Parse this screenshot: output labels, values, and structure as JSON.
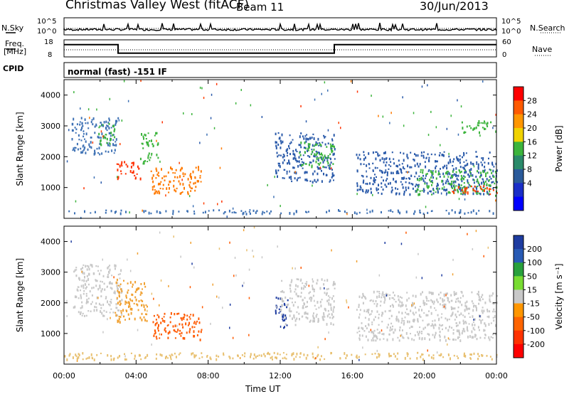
{
  "header": {
    "station": "Christmas Valley West (fitACF)",
    "beam": "Beam 11",
    "date": "30/Jun/2013"
  },
  "noise_panel": {
    "left_label": "N.Sky",
    "right_label": "N.Search",
    "left_ticks": [
      "10^5",
      "10^0"
    ],
    "right_ticks": [
      "10^5",
      "10^0"
    ]
  },
  "freq_panel": {
    "left_label_line1": "Freq.",
    "left_label_line2": "[MHz]",
    "right_label": "Nave",
    "left_ticks": [
      "18",
      "8"
    ],
    "right_ticks": [
      "60",
      "0"
    ]
  },
  "cpid": {
    "label": "CPID",
    "mode": "normal (fast) -151 IF"
  },
  "time_axis": {
    "title": "Time UT",
    "ticks": [
      "00:00",
      "04:00",
      "08:00",
      "12:00",
      "16:00",
      "20:00",
      "00:00"
    ]
  },
  "chart_data": [
    {
      "type": "heatmap",
      "name": "power",
      "ylabel": "Slant Range [km]",
      "yticks": [
        "4000",
        "3000",
        "2000",
        "1000"
      ],
      "colorbar_label": "Power [dB]",
      "colorbar_ticks": [
        "28",
        "24",
        "20",
        "16",
        "12",
        "8",
        "4"
      ],
      "colorbar_colors": [
        "#ff0000",
        "#ff5a00",
        "#ff9600",
        "#f0d200",
        "#3cb43c",
        "#2a8a6a",
        "#2a5a9a",
        "#1a2ec8",
        "#0000ff"
      ],
      "regions": [
        {
          "t": [
            0.4,
            3.0
          ],
          "r": [
            2100,
            3300
          ],
          "level": "mid",
          "color": "#3c70b4"
        },
        {
          "t": [
            1.8,
            2.8
          ],
          "r": [
            2400,
            3100
          ],
          "level": "high",
          "color": "#3cb43c"
        },
        {
          "t": [
            2.9,
            4.3
          ],
          "r": [
            1300,
            1900
          ],
          "level": "max",
          "color": "#ff3000"
        },
        {
          "t": [
            4.2,
            5.2
          ],
          "r": [
            1800,
            2800
          ],
          "level": "high",
          "color": "#3cb43c"
        },
        {
          "t": [
            4.8,
            7.6
          ],
          "r": [
            800,
            1700
          ],
          "level": "max",
          "color": "#ff7a00"
        },
        {
          "t": [
            11.7,
            15.0
          ],
          "r": [
            1200,
            2800
          ],
          "level": "mid",
          "color": "#2a5aaa"
        },
        {
          "t": [
            13.0,
            15.0
          ],
          "r": [
            1700,
            2500
          ],
          "level": "high",
          "color": "#3cb43c"
        },
        {
          "t": [
            16.2,
            24.0
          ],
          "r": [
            800,
            2200
          ],
          "level": "mid",
          "color": "#2a5aaa"
        },
        {
          "t": [
            19.5,
            24.0
          ],
          "r": [
            800,
            1600
          ],
          "level": "high",
          "color": "#3cb43c"
        },
        {
          "t": [
            21.5,
            24.0
          ],
          "r": [
            800,
            1100
          ],
          "level": "max",
          "color": "#ff4000"
        },
        {
          "t": [
            22.0,
            24.0
          ],
          "r": [
            2800,
            3200
          ],
          "level": "mid",
          "color": "#3cb43c"
        },
        {
          "t": [
            0.0,
            24.0
          ],
          "r": [
            180,
            300
          ],
          "level": "low",
          "color": "#3c70b4"
        }
      ]
    },
    {
      "type": "heatmap",
      "name": "velocity",
      "ylabel": "Slant Range [km]",
      "yticks": [
        "4000",
        "3000",
        "2000",
        "1000"
      ],
      "colorbar_label": "Velocity [m s⁻¹]",
      "colorbar_ticks": [
        "200",
        "100",
        "50",
        "15",
        "-15",
        "-50",
        "-100",
        "-200"
      ],
      "colorbar_colors": [
        "#1e3ca0",
        "#285ab4",
        "#28a03c",
        "#78dc32",
        "#c8c8c8",
        "#ff9600",
        "#ff6400",
        "#ff3200",
        "#ff0000"
      ],
      "regions": [
        {
          "t": [
            0.5,
            3.2
          ],
          "r": [
            1600,
            3300
          ],
          "level": "near zero",
          "color": "#c8c8c8"
        },
        {
          "t": [
            2.8,
            4.6
          ],
          "r": [
            1400,
            2800
          ],
          "level": "-50",
          "color": "#f0a030"
        },
        {
          "t": [
            4.9,
            7.6
          ],
          "r": [
            800,
            1700
          ],
          "level": "-100",
          "color": "#ff5a00"
        },
        {
          "t": [
            11.7,
            12.4
          ],
          "r": [
            1200,
            2200
          ],
          "level": "200",
          "color": "#1e3ca0"
        },
        {
          "t": [
            12.0,
            15.0
          ],
          "r": [
            1300,
            2800
          ],
          "level": "near zero",
          "color": "#c8c8c8"
        },
        {
          "t": [
            16.2,
            24.0
          ],
          "r": [
            800,
            2400
          ],
          "level": "near zero",
          "color": "#c8c8c8"
        },
        {
          "t": [
            0.0,
            24.0
          ],
          "r": [
            180,
            400
          ],
          "level": "-15 to 50",
          "color": "#e8c070"
        }
      ]
    }
  ]
}
